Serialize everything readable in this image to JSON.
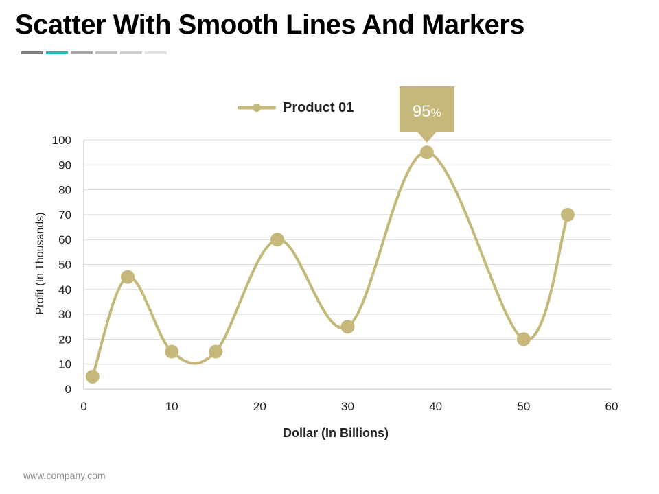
{
  "slide": {
    "title": "Scatter With Smooth Lines And Markers",
    "footer": "www.company.com",
    "title_rule_colors": [
      "#7f7f7f",
      "#2bb5b0",
      "#a6a6a6",
      "#bfbfbf",
      "#d0d0d0",
      "#e3e3e3"
    ]
  },
  "chart_data": {
    "type": "scatter",
    "smooth": true,
    "markers": true,
    "series": [
      {
        "name": "Product 01",
        "color": "#c5b87a",
        "points": [
          {
            "x": 1,
            "y": 5
          },
          {
            "x": 5,
            "y": 45
          },
          {
            "x": 10,
            "y": 15
          },
          {
            "x": 15,
            "y": 15
          },
          {
            "x": 22,
            "y": 60
          },
          {
            "x": 30,
            "y": 25
          },
          {
            "x": 39,
            "y": 95
          },
          {
            "x": 50,
            "y": 20
          },
          {
            "x": 55,
            "y": 70
          }
        ]
      }
    ],
    "xlabel": "Dollar (In Billions)",
    "ylabel": "Profit  (In Thousands)",
    "xlim": [
      0,
      60
    ],
    "ylim": [
      0,
      100
    ],
    "xticks": [
      "0",
      "10",
      "20",
      "30",
      "40",
      "50",
      "60"
    ],
    "yticks": [
      "0",
      "10",
      "20",
      "30",
      "40",
      "50",
      "60",
      "70",
      "80",
      "90",
      "100"
    ],
    "grid": "horizontal",
    "legend_position": "top",
    "callout": {
      "point_index": 6,
      "value": "95",
      "unit": "%"
    }
  }
}
